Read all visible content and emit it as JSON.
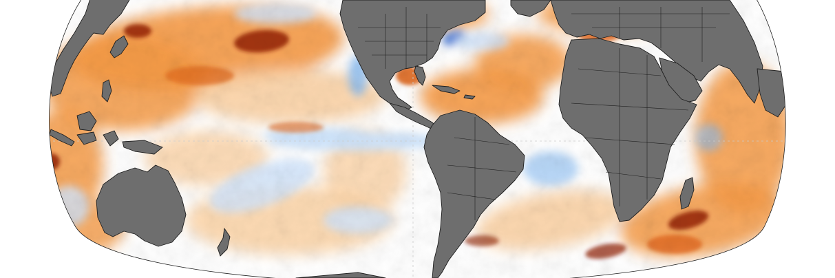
{
  "map": {
    "projection": "robinson",
    "subject": "sea-surface-temperature-anomaly",
    "colors": {
      "land": "#6e6e6e",
      "land_border": "#1e1e1e",
      "ocean_neutral": "#ffffff",
      "warm_light": "#fbd3a6",
      "warm_mid": "#f59a45",
      "warm_strong": "#e0681e",
      "warm_max": "#8e1a08",
      "cool_light": "#cfe4fb",
      "cool_mid": "#88bcf2",
      "cool_strong": "#3d74d6",
      "cool_max": "#1a3ea8",
      "graticule": "#cccccc"
    },
    "labels_visible": false
  }
}
